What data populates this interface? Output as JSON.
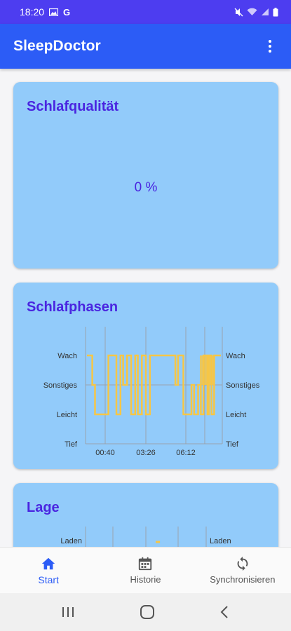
{
  "status": {
    "time": "18:20",
    "left_icons": [
      "image-icon",
      "google-icon"
    ],
    "right_icons": [
      "mute-icon",
      "wifi-icon",
      "signal-icon",
      "battery-icon"
    ]
  },
  "app_bar": {
    "title": "SleepDoctor",
    "menu_icon": "more-vert-icon"
  },
  "quality_card": {
    "title": "Schlafqualität",
    "value": "0 %"
  },
  "phases_card": {
    "title": "Schlafphasen",
    "chart_data": {
      "type": "line",
      "y_categories": [
        "Tief",
        "Leicht",
        "Sonstiges",
        "Wach"
      ],
      "x_ticks": [
        "00:40",
        "03:26",
        "06:12"
      ],
      "color": "#f6c646",
      "series": [
        {
          "points": [
            [
              0.0,
              3
            ],
            [
              0.04,
              3
            ],
            [
              0.04,
              2
            ],
            [
              0.06,
              2
            ],
            [
              0.06,
              1
            ],
            [
              0.16,
              1
            ],
            [
              0.16,
              3
            ],
            [
              0.22,
              3
            ],
            [
              0.22,
              1
            ],
            [
              0.25,
              1
            ],
            [
              0.25,
              3
            ],
            [
              0.27,
              3
            ],
            [
              0.27,
              2
            ],
            [
              0.3,
              2
            ],
            [
              0.3,
              3
            ],
            [
              0.33,
              3
            ],
            [
              0.33,
              1
            ],
            [
              0.36,
              1
            ],
            [
              0.36,
              3
            ],
            [
              0.38,
              3
            ],
            [
              0.38,
              1
            ],
            [
              0.41,
              1
            ],
            [
              0.41,
              3
            ],
            [
              0.44,
              3
            ],
            [
              0.44,
              1
            ],
            [
              0.47,
              1
            ],
            [
              0.47,
              3
            ],
            [
              0.66,
              3
            ],
            [
              0.66,
              2
            ],
            [
              0.68,
              2
            ],
            [
              0.68,
              3
            ],
            [
              0.72,
              3
            ],
            [
              0.72,
              1
            ],
            [
              0.78,
              1
            ],
            [
              0.78,
              2
            ],
            [
              0.8,
              2
            ],
            [
              0.8,
              1
            ],
            [
              0.83,
              1
            ],
            [
              0.83,
              2
            ],
            [
              0.85,
              2
            ],
            [
              0.85,
              1
            ],
            [
              0.87,
              1
            ],
            [
              0.87,
              3
            ],
            [
              0.9,
              3
            ],
            [
              0.9,
              1
            ],
            [
              0.91,
              1
            ],
            [
              0.91,
              3
            ],
            [
              0.93,
              3
            ],
            [
              0.93,
              1
            ],
            [
              0.95,
              1
            ],
            [
              0.95,
              3
            ],
            [
              1.0,
              3
            ]
          ]
        }
      ]
    }
  },
  "position_card": {
    "title": "Lage",
    "y_label_visible": "Laden",
    "color": "#f6c646"
  },
  "bottom_nav": {
    "items": [
      {
        "label": "Start",
        "icon": "home-icon",
        "active": true
      },
      {
        "label": "Historie",
        "icon": "calendar-icon",
        "active": false
      },
      {
        "label": "Synchronisieren",
        "icon": "sync-icon",
        "active": false
      }
    ]
  },
  "system_nav": {
    "icons": [
      "recents-icon",
      "home-circle-icon",
      "back-icon"
    ]
  }
}
